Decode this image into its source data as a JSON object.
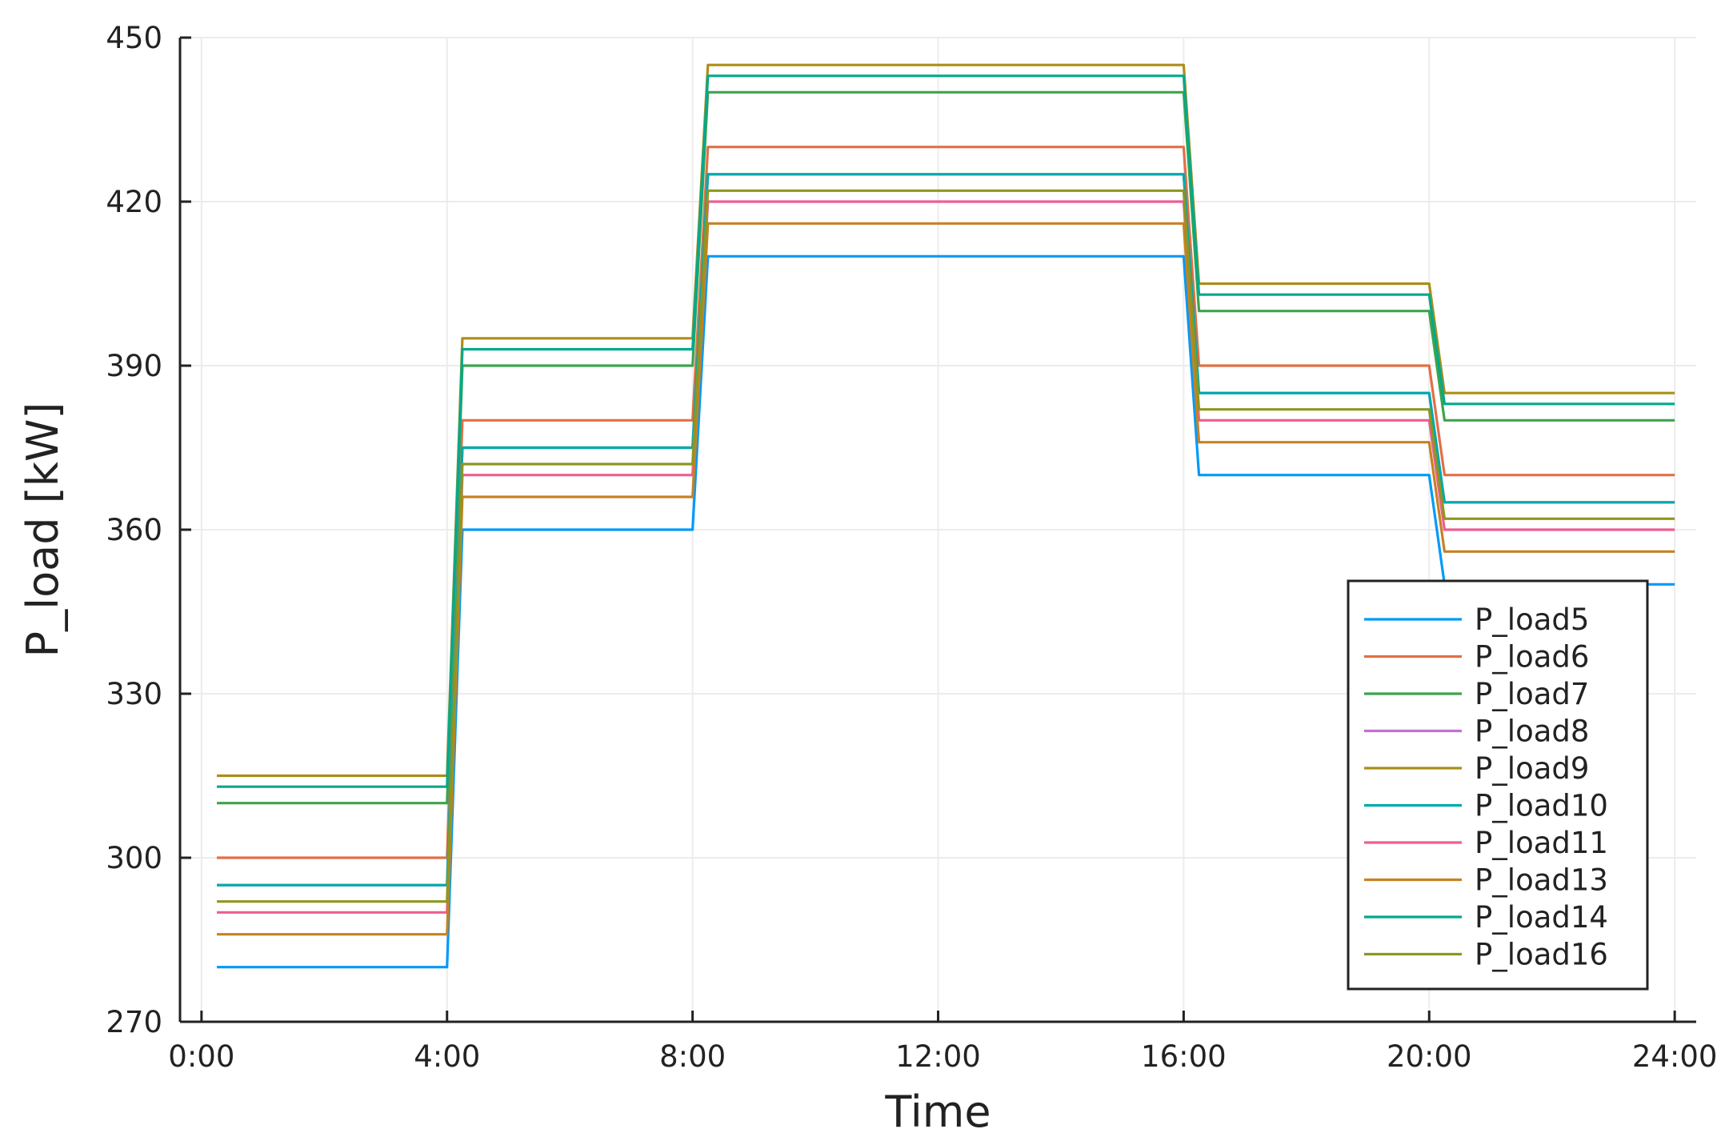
{
  "chart_data": {
    "type": "line",
    "title": "",
    "xlabel": "Time",
    "ylabel": "P_load [kW]",
    "x_ticks": [
      "0:00",
      "4:00",
      "8:00",
      "12:00",
      "16:00",
      "20:00",
      "24:00"
    ],
    "y_ticks": [
      "270",
      "300",
      "330",
      "360",
      "390",
      "420",
      "450"
    ],
    "xlim": [
      "0:00",
      "24:00"
    ],
    "ylim": [
      270,
      450
    ],
    "grid": true,
    "legend_position": "bottom-right",
    "x": [
      "0:00",
      "4:00",
      "4:00",
      "8:00",
      "8:00",
      "16:00",
      "16:00",
      "20:00",
      "20:00",
      "24:00"
    ],
    "series": [
      {
        "name": "P_load5",
        "color": "#009af9",
        "values": [
          280,
          280,
          360,
          360,
          410,
          410,
          370,
          370,
          350,
          350
        ]
      },
      {
        "name": "P_load6",
        "color": "#e26f46",
        "values": [
          300,
          300,
          380,
          380,
          430,
          430,
          390,
          390,
          370,
          370
        ]
      },
      {
        "name": "P_load7",
        "color": "#3da44d",
        "values": [
          310,
          310,
          390,
          390,
          440,
          440,
          400,
          400,
          380,
          380
        ]
      },
      {
        "name": "P_load8",
        "color": "#c271d2",
        "values": [
          295,
          295,
          375,
          375,
          425,
          425,
          385,
          385,
          365,
          365
        ]
      },
      {
        "name": "P_load9",
        "color": "#ac8e18",
        "values": [
          315,
          315,
          395,
          395,
          445,
          445,
          405,
          405,
          385,
          385
        ]
      },
      {
        "name": "P_load10",
        "color": "#00a9ad",
        "values": [
          295,
          295,
          375,
          375,
          425,
          425,
          385,
          385,
          365,
          365
        ]
      },
      {
        "name": "P_load11",
        "color": "#ed5e93",
        "values": [
          290,
          290,
          370,
          370,
          420,
          420,
          380,
          380,
          360,
          360
        ]
      },
      {
        "name": "P_load13",
        "color": "#c68125",
        "values": [
          286,
          286,
          366,
          366,
          416,
          416,
          376,
          376,
          356,
          356
        ]
      },
      {
        "name": "P_load14",
        "color": "#00a98d",
        "values": [
          313,
          313,
          393,
          393,
          443,
          443,
          403,
          403,
          383,
          383
        ]
      },
      {
        "name": "P_load16",
        "color": "#8e971e",
        "values": [
          292,
          292,
          372,
          372,
          422,
          422,
          382,
          382,
          362,
          362
        ]
      }
    ]
  }
}
